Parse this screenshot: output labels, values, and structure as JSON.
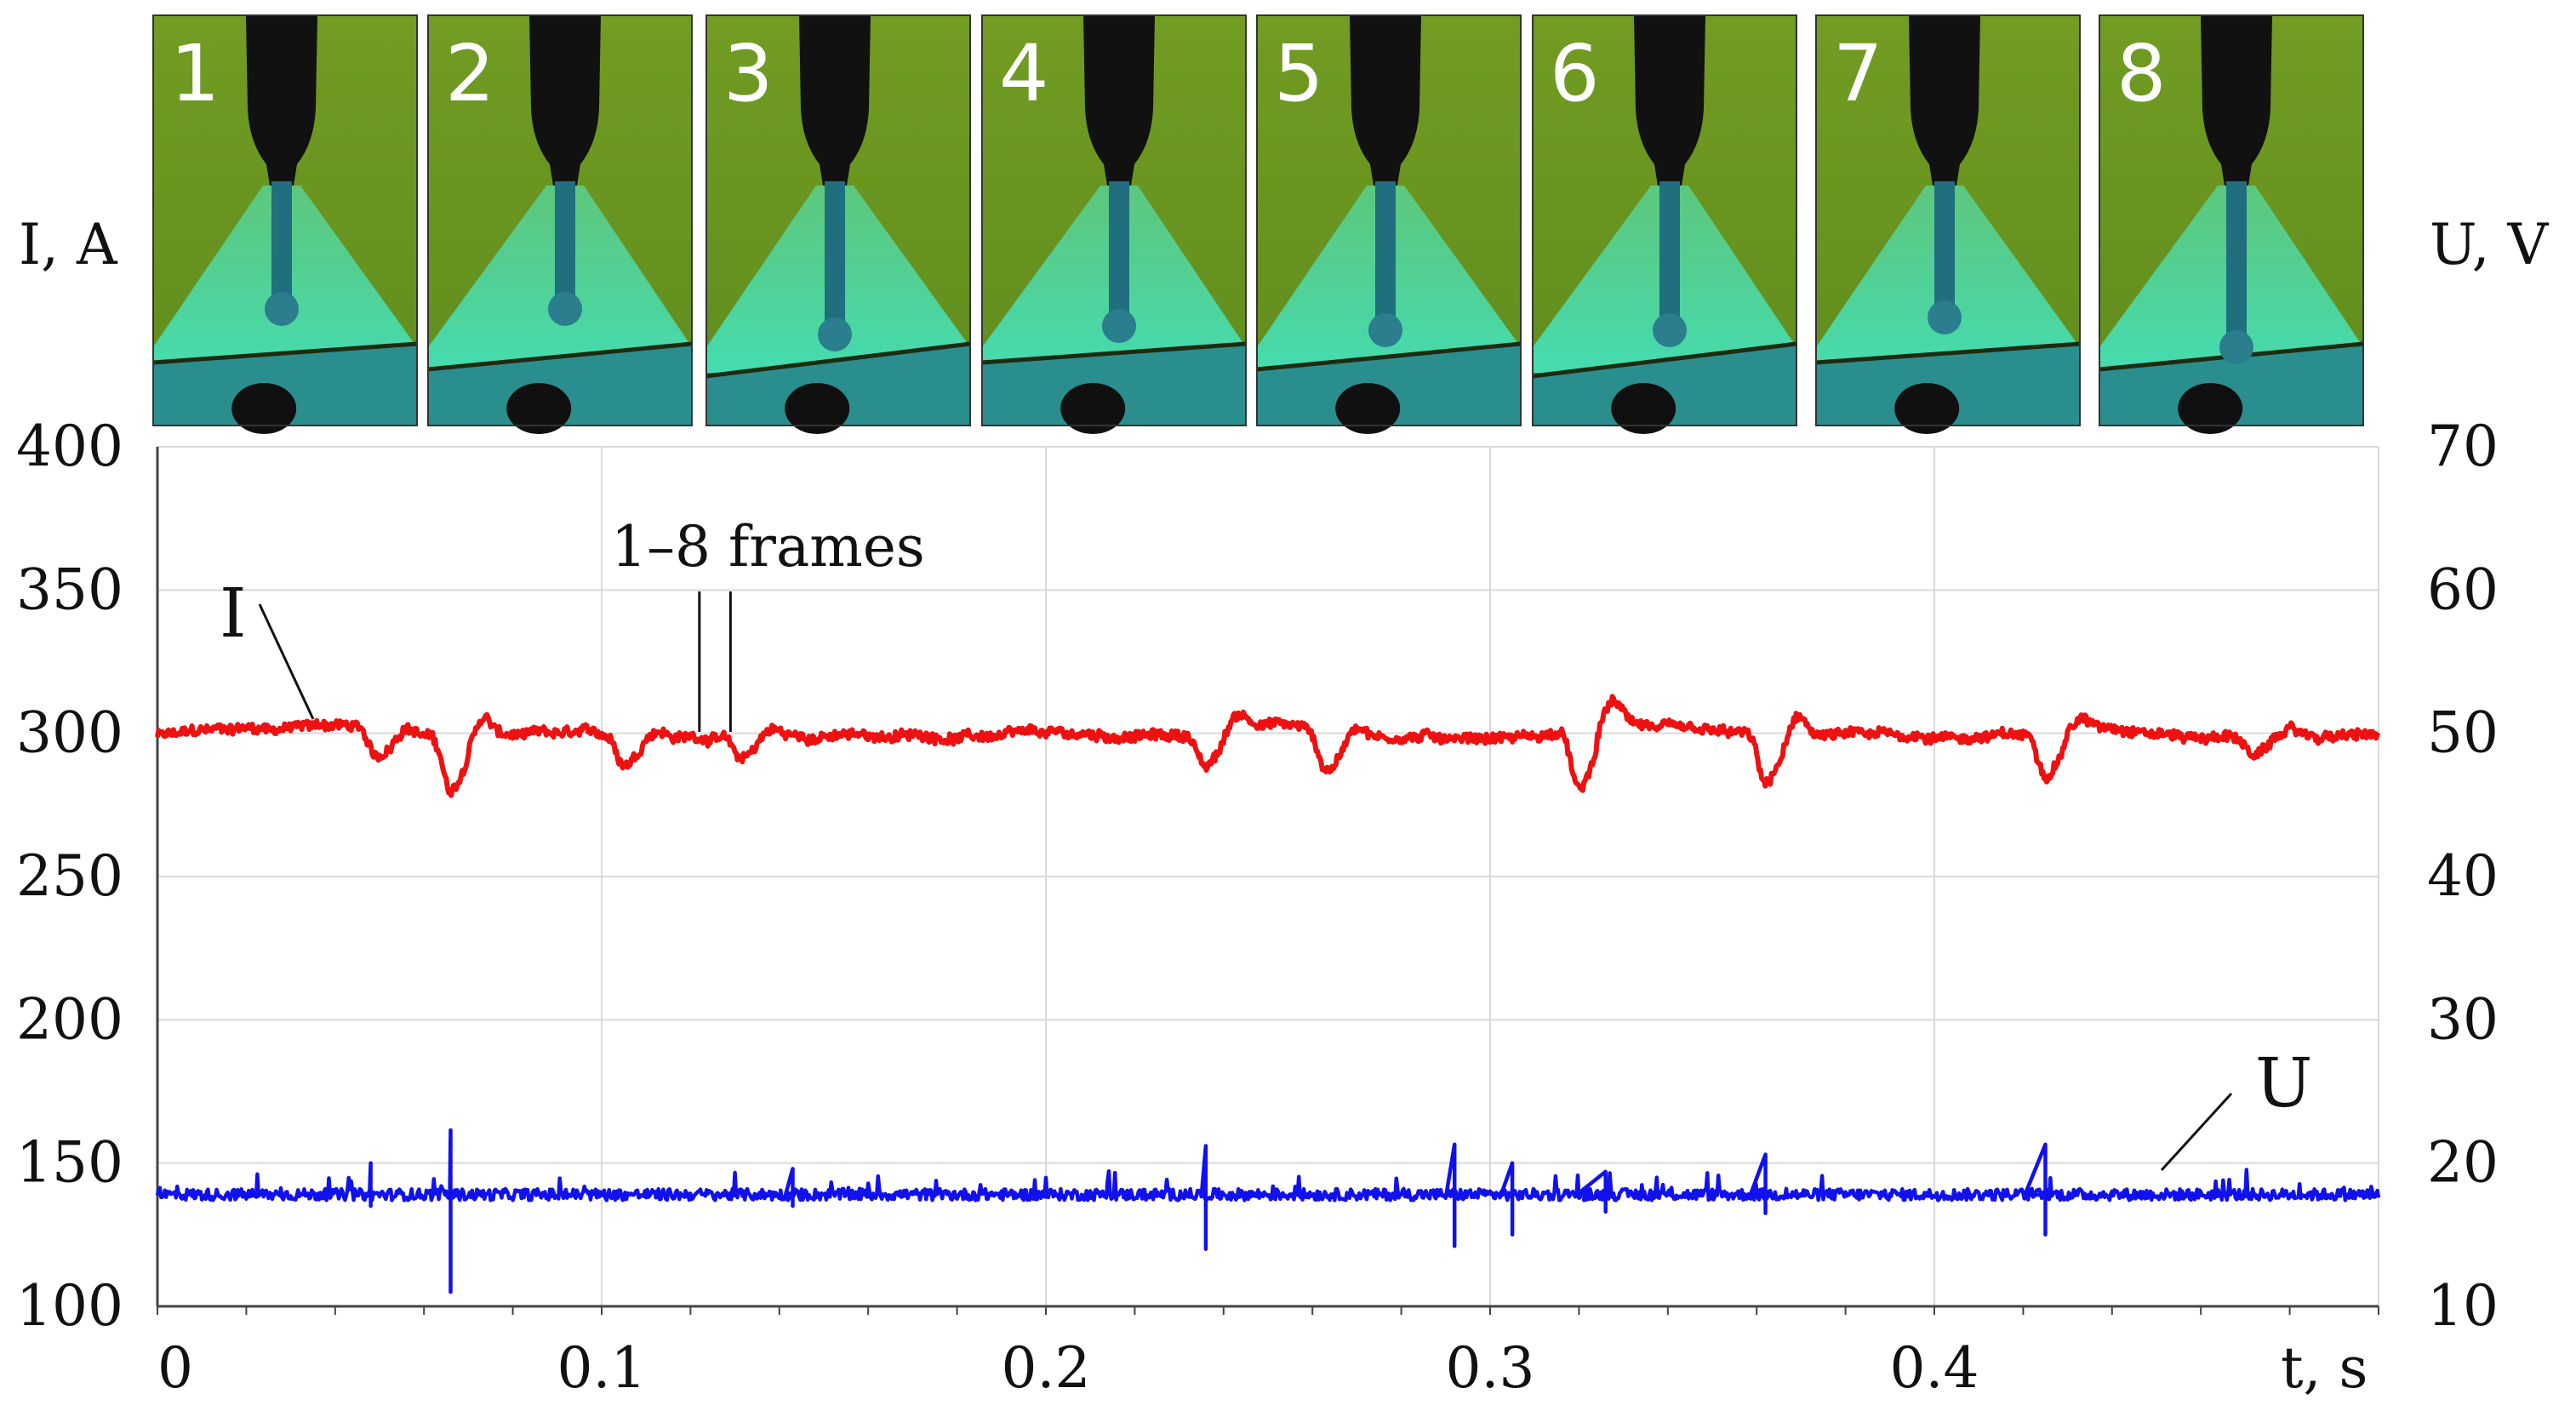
{
  "chart_data": {
    "type": "line",
    "title": "",
    "xlabel": "t, s",
    "ylabel_left": "I, A",
    "ylabel_right": "U, V",
    "xlim": [
      0,
      0.5
    ],
    "ylim_left": [
      100,
      400
    ],
    "ylim_right": [
      10,
      70
    ],
    "x_ticks": [
      0,
      0.1,
      0.2,
      0.3,
      0.4
    ],
    "x_tick_labels": [
      "0",
      "0.1",
      "0.2",
      "0.3",
      "0.4"
    ],
    "y_left_ticks": [
      100,
      150,
      200,
      250,
      300,
      350,
      400
    ],
    "y_left_tick_labels": [
      "100",
      "150",
      "200",
      "250",
      "300",
      "350",
      "400"
    ],
    "y_right_ticks": [
      10,
      20,
      30,
      40,
      50,
      60,
      70
    ],
    "y_right_tick_labels": [
      "10",
      "20",
      "30",
      "40",
      "50",
      "60",
      "70"
    ],
    "grid": true,
    "series": [
      {
        "name": "I",
        "axis": "left",
        "color": "#ee1111",
        "baseline": 299,
        "noise": 3.2,
        "dips": [
          {
            "t": 0.049,
            "depth": 10
          },
          {
            "t": 0.066,
            "depth": 20
          },
          {
            "t": 0.105,
            "depth": 9
          },
          {
            "t": 0.131,
            "depth": 8
          },
          {
            "t": 0.236,
            "depth": 12
          },
          {
            "t": 0.263,
            "depth": 13
          },
          {
            "t": 0.32,
            "depth": 22
          },
          {
            "t": 0.362,
            "depth": 17
          },
          {
            "t": 0.425,
            "depth": 13
          },
          {
            "t": 0.472,
            "depth": 7
          }
        ],
        "bumps": [
          {
            "t": 0.02,
            "height": 3
          },
          {
            "t": 0.04,
            "height": 4
          },
          {
            "t": 0.25,
            "height": 5
          },
          {
            "t": 0.33,
            "height": 5
          },
          {
            "t": 0.44,
            "height": 4
          }
        ]
      },
      {
        "name": "U",
        "axis": "right",
        "color": "#1111ee",
        "baseline": 17.8,
        "noise": 0.5,
        "spikes": [
          {
            "t": 0.066,
            "high": 22.3,
            "low": 11.0
          },
          {
            "t": 0.236,
            "high": 21.2,
            "low": 14.0
          },
          {
            "t": 0.292,
            "high": 21.3,
            "low": 14.2
          },
          {
            "t": 0.305,
            "high": 20.0,
            "low": 15.0
          },
          {
            "t": 0.362,
            "high": 20.6,
            "low": 16.5
          },
          {
            "t": 0.425,
            "high": 21.3,
            "low": 15.0
          },
          {
            "t": 0.048,
            "high": 20.0,
            "low": 17.0
          },
          {
            "t": 0.143,
            "high": 19.6,
            "low": 17.0
          },
          {
            "t": 0.326,
            "high": 19.4,
            "low": 16.6
          }
        ]
      }
    ],
    "annotations": [
      {
        "text": "1–8 frames",
        "type": "text",
        "markers_t": [
          0.122,
          0.129
        ]
      },
      {
        "text": "I",
        "type": "series-label",
        "series": "I"
      },
      {
        "text": "U",
        "type": "series-label",
        "series": "U"
      }
    ],
    "frames": {
      "labels": [
        "1",
        "2",
        "3",
        "4",
        "5",
        "6",
        "7",
        "8"
      ],
      "background_color": "#6f9a1f",
      "arc_color": "#5be0a0",
      "pool_color": "#2a8e8e",
      "electrode_color": "#111111"
    }
  }
}
